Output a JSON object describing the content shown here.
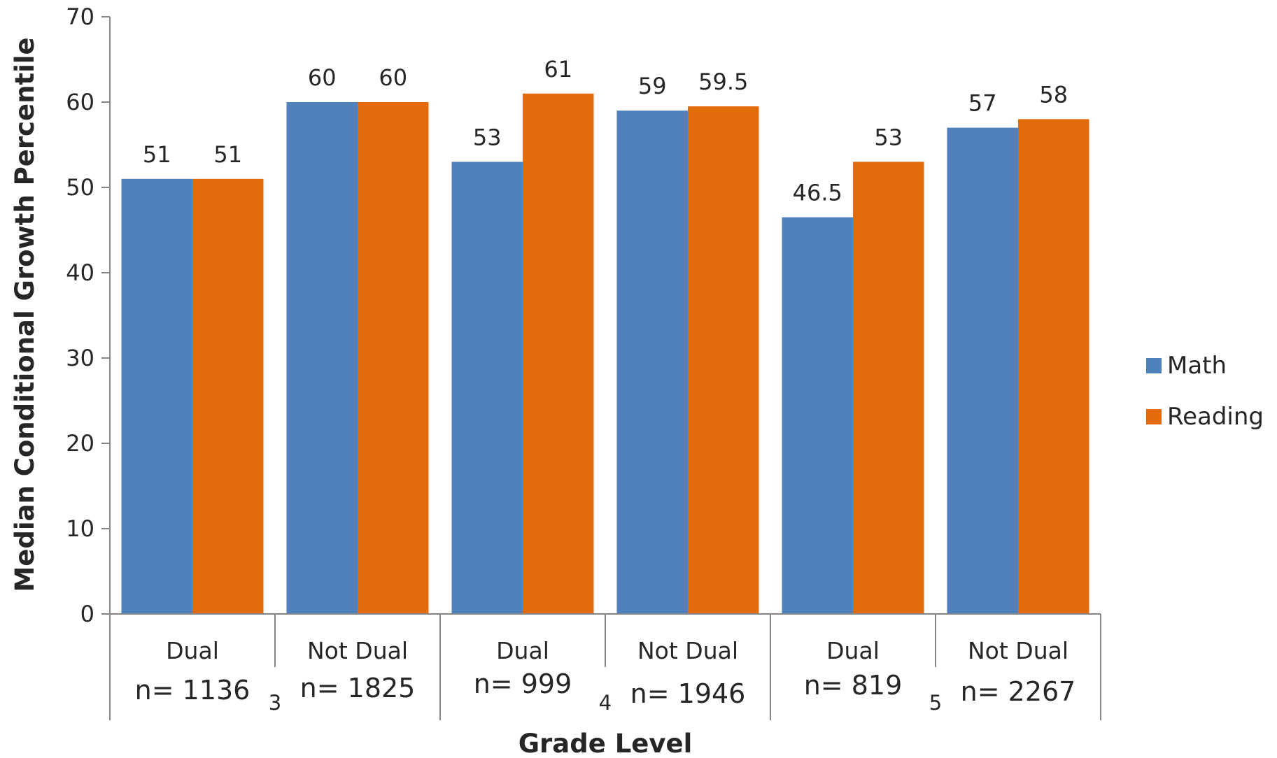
{
  "chart_data": {
    "type": "bar",
    "xlabel": "Grade Level",
    "ylabel": "Median Conditional  Growth Percentile",
    "ylim": [
      0,
      70
    ],
    "yticks": [
      0,
      10,
      20,
      30,
      40,
      50,
      60,
      70
    ],
    "grid": false,
    "legend_position": "right",
    "groups": [
      {
        "grade": "3",
        "categories": [
          {
            "label": "Dual",
            "n": "n= 1136",
            "values": [
              51,
              51
            ]
          },
          {
            "label": "Not Dual",
            "n": "n= 1825",
            "values": [
              60,
              60
            ]
          }
        ]
      },
      {
        "grade": "4",
        "categories": [
          {
            "label": "Dual",
            "n": "n= 999",
            "values": [
              53,
              61
            ]
          },
          {
            "label": "Not Dual",
            "n": "n= 1946",
            "values": [
              59,
              59.5
            ]
          }
        ]
      },
      {
        "grade": "5",
        "categories": [
          {
            "label": "Dual",
            "n": "n= 819",
            "values": [
              46.5,
              53
            ]
          },
          {
            "label": "Not Dual",
            "n": "n= 2267",
            "values": [
              57,
              58
            ]
          }
        ]
      }
    ],
    "series": [
      {
        "name": "Math",
        "color": "#4F81BD"
      },
      {
        "name": "Reading",
        "color": "#E36C0A"
      }
    ]
  }
}
